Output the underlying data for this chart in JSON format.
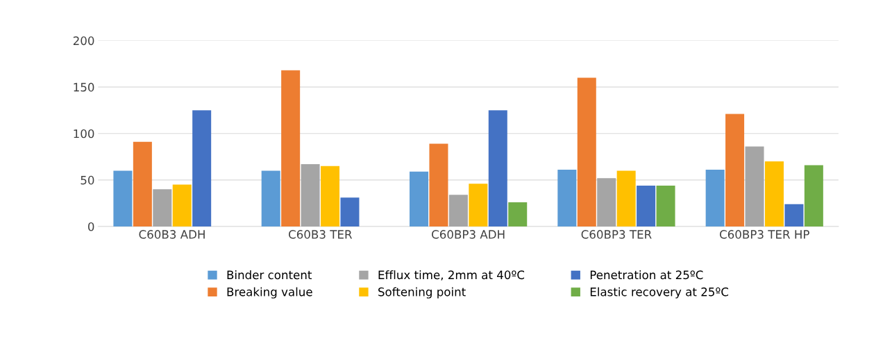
{
  "chart_data": {
    "type": "bar",
    "categories": [
      "C60B3 ADH",
      "C60B3 TER",
      "C60BP3 ADH",
      "C60BP3 TER",
      "C60BP3 TER HP"
    ],
    "series": [
      {
        "name": "Binder content",
        "color": "#5b9bd5",
        "values": [
          60,
          60,
          59,
          61,
          61
        ]
      },
      {
        "name": "Breaking value",
        "color": "#ed7d31",
        "values": [
          91,
          168,
          89,
          160,
          121
        ]
      },
      {
        "name": "Efflux time, 2mm at 40ºC",
        "color": "#a5a5a5",
        "values": [
          40,
          67,
          34,
          52,
          86
        ]
      },
      {
        "name": "Softening point",
        "color": "#ffc000",
        "values": [
          45,
          65,
          46,
          60,
          70
        ]
      },
      {
        "name": "Penetration at 25ºC",
        "color": "#4472c4",
        "values": [
          125,
          31,
          125,
          44,
          24
        ]
      },
      {
        "name": "Elastic recovery at 25ºC",
        "color": "#70ad47",
        "values": [
          0,
          0,
          26,
          44,
          66
        ]
      }
    ],
    "ylim": [
      0,
      200
    ],
    "yticks": [
      0,
      50,
      100,
      150,
      200
    ],
    "grid": "y",
    "legend": "bottom"
  }
}
